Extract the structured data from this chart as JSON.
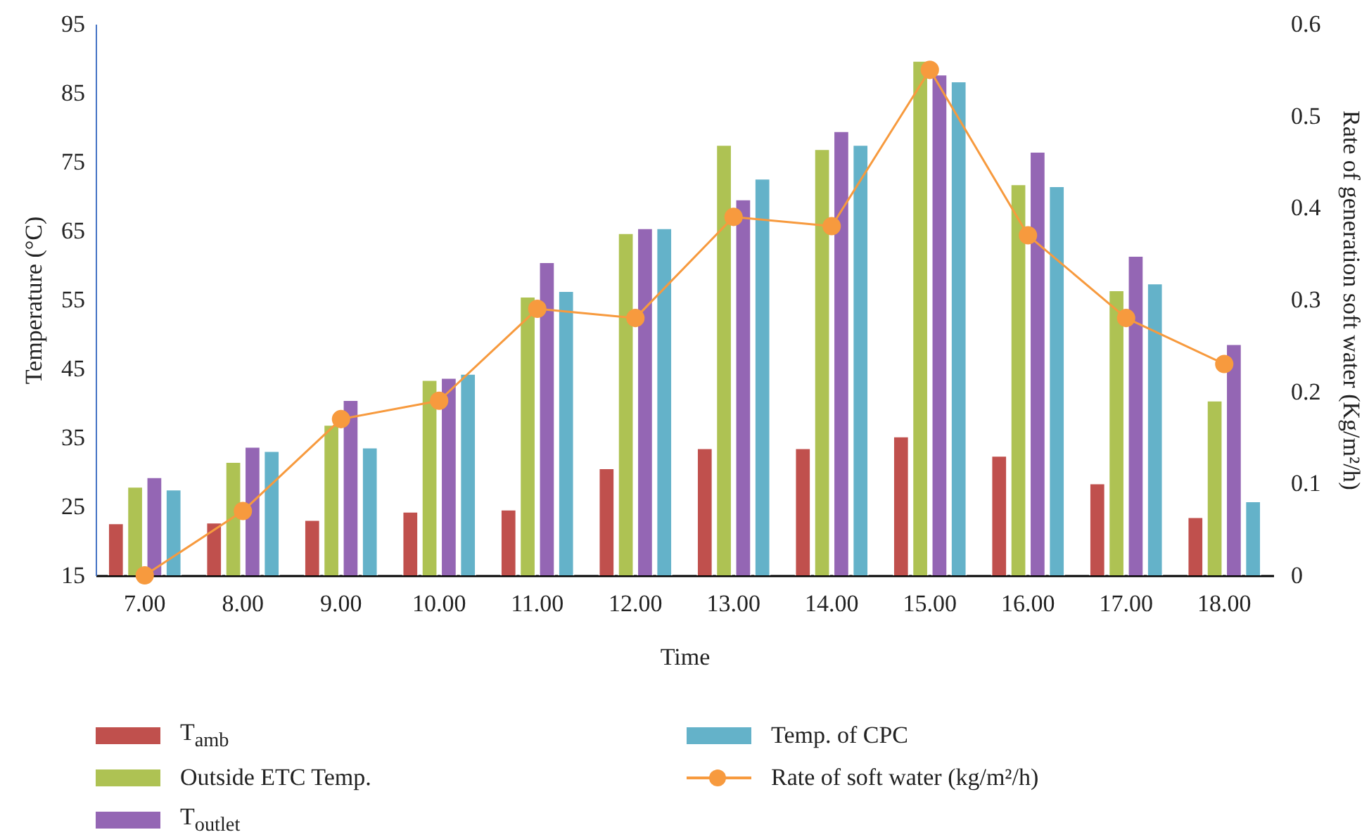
{
  "chart_data": {
    "type": "bar",
    "xlabel": "Time",
    "ylabel": "Temperature (°C)",
    "y2label": "Rate of generation soft water (Kg/m²/h)",
    "categories": [
      "7.00",
      "8.00",
      "9.00",
      "10.00",
      "11.00",
      "12.00",
      "13.00",
      "14.00",
      "15.00",
      "16.00",
      "17.00",
      "18.00"
    ],
    "series": [
      {
        "name": "T$_{amb}$",
        "color": "#c0504d",
        "values": [
          22.5,
          22.6,
          23.0,
          24.2,
          24.5,
          30.5,
          33.4,
          33.4,
          35.1,
          32.3,
          28.3,
          23.4
        ]
      },
      {
        "name": "Outside ETC Temp.",
        "color": "#aec253",
        "values": [
          27.8,
          31.4,
          36.8,
          43.3,
          55.4,
          64.6,
          77.4,
          76.8,
          89.6,
          71.7,
          56.3,
          40.3
        ]
      },
      {
        "name": "T$_{outlet}$",
        "color": "#9466b4",
        "values": [
          29.2,
          33.6,
          40.4,
          43.6,
          60.4,
          65.3,
          69.5,
          79.4,
          87.6,
          76.4,
          61.3,
          48.5
        ]
      },
      {
        "name": "Temp. of CPC",
        "color": "#64b2c9",
        "values": [
          27.4,
          33.0,
          33.5,
          44.2,
          56.2,
          65.3,
          72.5,
          77.4,
          86.6,
          71.4,
          57.3,
          25.7
        ]
      },
      {
        "name": "Rate of soft water (kg/m²/h)",
        "type": "line",
        "axis": "y2",
        "marker": "circle",
        "color": "#f79a3e",
        "values": [
          0,
          0.07,
          0.17,
          0.19,
          0.29,
          0.28,
          0.39,
          0.38,
          0.55,
          0.37,
          0.28,
          0.23
        ]
      }
    ],
    "ylim": [
      15,
      95
    ],
    "yticks": [
      15,
      25,
      35,
      45,
      55,
      65,
      75,
      85,
      95
    ],
    "y2lim": [
      0,
      0.6
    ],
    "y2ticks": [
      0,
      0.1,
      0.2,
      0.3,
      0.4,
      0.5,
      0.6
    ],
    "grid": false,
    "legend": "bottom"
  }
}
